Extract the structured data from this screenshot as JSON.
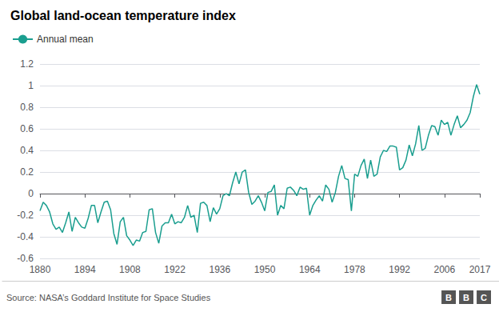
{
  "chart_data": {
    "type": "line",
    "title": "Global land-ocean temperature index",
    "annotations": [
      "Source: NASA’s Goddard Institute for Space Studies",
      "BBC"
    ],
    "legend": "upper left",
    "grid": true,
    "xlim": [
      1880,
      2017
    ],
    "xticks": [
      1880,
      1894,
      1908,
      1922,
      1936,
      1950,
      1964,
      1978,
      1992,
      2006,
      2017
    ],
    "ylim": [
      -0.6,
      1.2
    ],
    "yticks": [
      -0.6,
      -0.4,
      -0.2,
      0,
      0.2,
      0.4,
      0.6,
      0.8,
      1,
      1.2
    ],
    "x": [
      1880,
      1881,
      1882,
      1883,
      1884,
      1885,
      1886,
      1887,
      1888,
      1889,
      1890,
      1891,
      1892,
      1893,
      1894,
      1895,
      1896,
      1897,
      1898,
      1899,
      1900,
      1901,
      1902,
      1903,
      1904,
      1905,
      1906,
      1907,
      1908,
      1909,
      1910,
      1911,
      1912,
      1913,
      1914,
      1915,
      1916,
      1917,
      1918,
      1919,
      1920,
      1921,
      1922,
      1923,
      1924,
      1925,
      1926,
      1927,
      1928,
      1929,
      1930,
      1931,
      1932,
      1933,
      1934,
      1935,
      1936,
      1937,
      1938,
      1939,
      1940,
      1941,
      1942,
      1943,
      1944,
      1945,
      1946,
      1947,
      1948,
      1949,
      1950,
      1951,
      1952,
      1953,
      1954,
      1955,
      1956,
      1957,
      1958,
      1959,
      1960,
      1961,
      1962,
      1963,
      1964,
      1965,
      1966,
      1967,
      1968,
      1969,
      1970,
      1971,
      1972,
      1973,
      1974,
      1975,
      1976,
      1977,
      1978,
      1979,
      1980,
      1981,
      1982,
      1983,
      1984,
      1985,
      1986,
      1987,
      1988,
      1989,
      1990,
      1991,
      1992,
      1993,
      1994,
      1995,
      1996,
      1997,
      1998,
      1999,
      2000,
      2001,
      2002,
      2003,
      2004,
      2005,
      2006,
      2007,
      2008,
      2009,
      2010,
      2011,
      2012,
      2013,
      2014,
      2015,
      2016,
      2017
    ],
    "series": [
      {
        "name": "Annual mean",
        "color": "#1a9e8f",
        "values": [
          -0.16,
          -0.08,
          -0.11,
          -0.17,
          -0.28,
          -0.33,
          -0.31,
          -0.36,
          -0.27,
          -0.17,
          -0.35,
          -0.22,
          -0.27,
          -0.31,
          -0.32,
          -0.23,
          -0.11,
          -0.11,
          -0.27,
          -0.17,
          -0.08,
          -0.07,
          -0.15,
          -0.37,
          -0.47,
          -0.26,
          -0.22,
          -0.39,
          -0.43,
          -0.48,
          -0.43,
          -0.44,
          -0.36,
          -0.35,
          -0.15,
          -0.14,
          -0.36,
          -0.46,
          -0.3,
          -0.27,
          -0.27,
          -0.19,
          -0.28,
          -0.26,
          -0.27,
          -0.22,
          -0.11,
          -0.22,
          -0.2,
          -0.36,
          -0.09,
          -0.08,
          -0.11,
          -0.26,
          -0.13,
          -0.19,
          -0.14,
          -0.02,
          -0.0,
          -0.02,
          0.1,
          0.2,
          0.09,
          0.2,
          0.22,
          0.01,
          -0.1,
          -0.07,
          -0.02,
          -0.08,
          -0.16,
          0.01,
          0.02,
          0.08,
          -0.2,
          -0.11,
          -0.14,
          0.05,
          0.06,
          0.03,
          -0.02,
          0.06,
          0.04,
          0.05,
          -0.2,
          -0.11,
          -0.06,
          -0.02,
          -0.07,
          0.08,
          0.04,
          -0.08,
          0.01,
          0.16,
          0.26,
          0.14,
          0.13,
          -0.16,
          0.18,
          0.16,
          0.26,
          0.32,
          0.14,
          0.31,
          0.16,
          0.18,
          0.34,
          0.4,
          0.39,
          0.44,
          0.44,
          0.43,
          0.22,
          0.24,
          0.31,
          0.45,
          0.35,
          0.46,
          0.63,
          0.4,
          0.42,
          0.54,
          0.63,
          0.62,
          0.54,
          0.68,
          0.64,
          0.66,
          0.54,
          0.64,
          0.72,
          0.61,
          0.64,
          0.68,
          0.75,
          0.9,
          1.01,
          0.92
        ]
      }
    ]
  }
}
